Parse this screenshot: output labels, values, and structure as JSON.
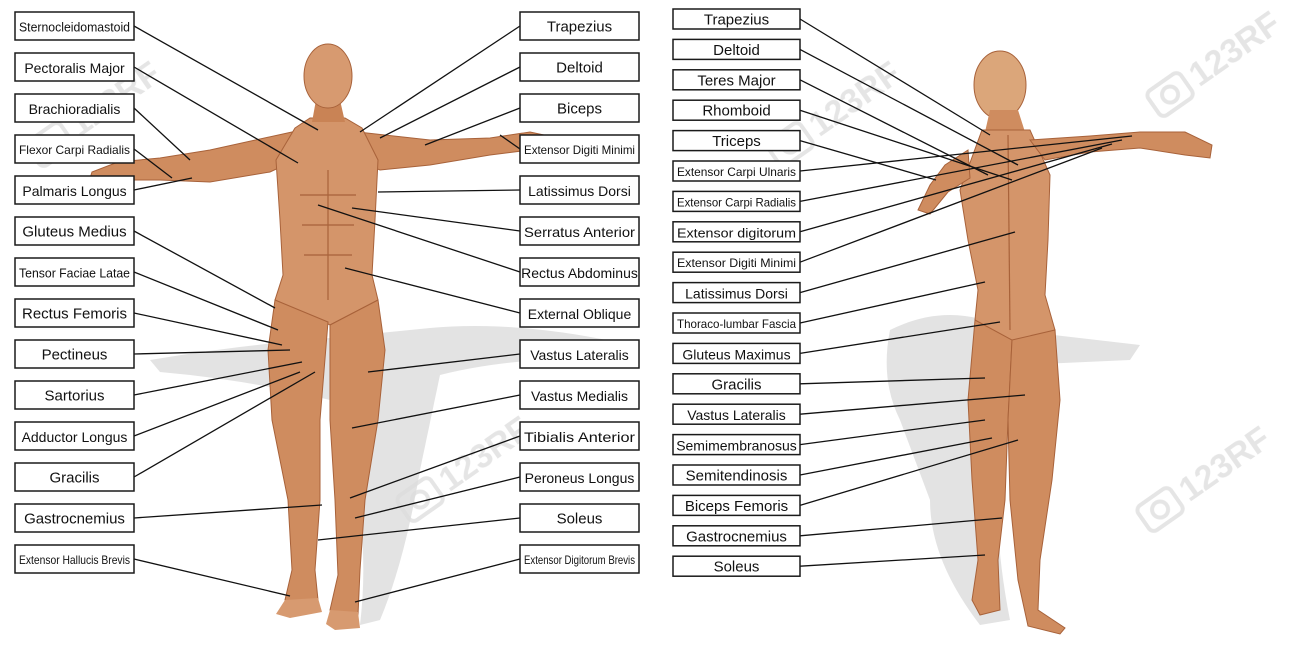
{
  "colors": {
    "muscle": "#d4956a",
    "muscle_dark": "#b56a3f",
    "muscle_light": "#f0c7a2",
    "tendon": "#f5e4cf",
    "shadow": "#d9d9d9",
    "line": "#111111",
    "box_border": "#1a1a1a"
  },
  "watermark": {
    "text": "123RF",
    "icon": "camera-icon"
  },
  "anterior_view": {
    "left_labels": [
      "Sternocleidomastoid",
      "Pectoralis Major",
      "Brachioradialis",
      "Flexor Carpi Radialis",
      "Palmaris Longus",
      "Gluteus Medius",
      "Tensor Faciae Latae",
      "Rectus Femoris",
      "Pectineus",
      "Sartorius",
      "Adductor Longus",
      "Gracilis",
      "Gastrocnemius",
      "Extensor Hallucis Brevis"
    ],
    "right_labels": [
      "Trapezius",
      "Deltoid",
      "Biceps",
      "Extensor Digiti Minimi",
      "Latissimus Dorsi",
      "Serratus Anterior",
      "Rectus Abdominus",
      "External Oblique",
      "Vastus Lateralis",
      "Vastus Medialis",
      "Tibialis Anterior",
      "Peroneus Longus",
      "Soleus",
      "Extensor Digitorum Brevis"
    ]
  },
  "posterior_view": {
    "labels": [
      "Trapezius",
      "Deltoid",
      "Teres Major",
      "Rhomboid",
      "Triceps",
      "Extensor Carpi Ulnaris",
      "Extensor Carpi Radialis",
      "Extensor digitorum",
      "Extensor Digiti Minimi",
      "Latissimus Dorsi",
      "Thoraco-lumbar Fascia",
      "Gluteus Maximus",
      "Gracilis",
      "Vastus Lateralis",
      "Semimembranosus",
      "Semitendinosis",
      "Biceps Femoris",
      "Gastrocnemius",
      "Soleus"
    ]
  }
}
